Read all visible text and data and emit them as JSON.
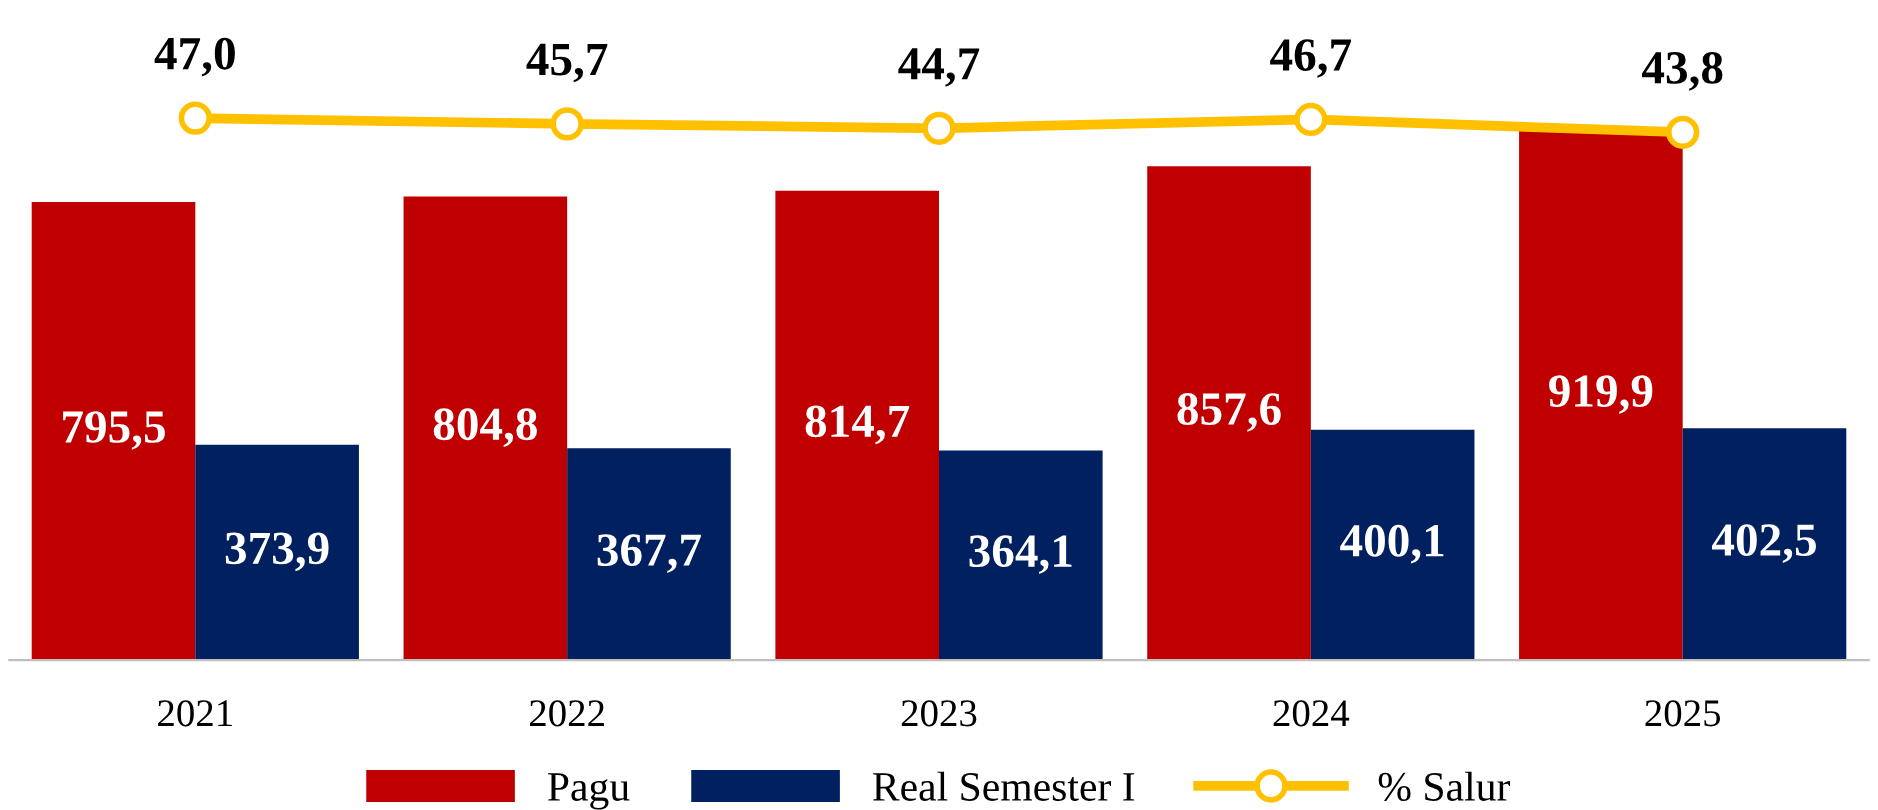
{
  "chart_data": {
    "type": "bar",
    "categories": [
      "2021",
      "2022",
      "2023",
      "2024",
      "2025"
    ],
    "series": [
      {
        "name": "Pagu",
        "color": "#c00000",
        "values": [
          795.5,
          804.8,
          814.7,
          857.6,
          919.9
        ],
        "value_labels": [
          "795,5",
          "804,8",
          "814,7",
          "857,6",
          "919,9"
        ]
      },
      {
        "name": "Real Semester I",
        "color": "#002060",
        "values": [
          373.9,
          367.7,
          364.1,
          400.1,
          402.5
        ],
        "value_labels": [
          "373,9",
          "367,7",
          "364,1",
          "400,1",
          "402,5"
        ]
      },
      {
        "name": "% Salur",
        "type": "line",
        "axis": "y2",
        "color": "#ffc000",
        "marker": "circle",
        "values": [
          47.0,
          45.7,
          44.7,
          46.7,
          43.8
        ],
        "value_labels": [
          "47,0",
          "45,7",
          "44,7",
          "46,7",
          "43,8"
        ]
      }
    ],
    "tick_labels": "x",
    "grid": false,
    "legend": "bottom"
  }
}
